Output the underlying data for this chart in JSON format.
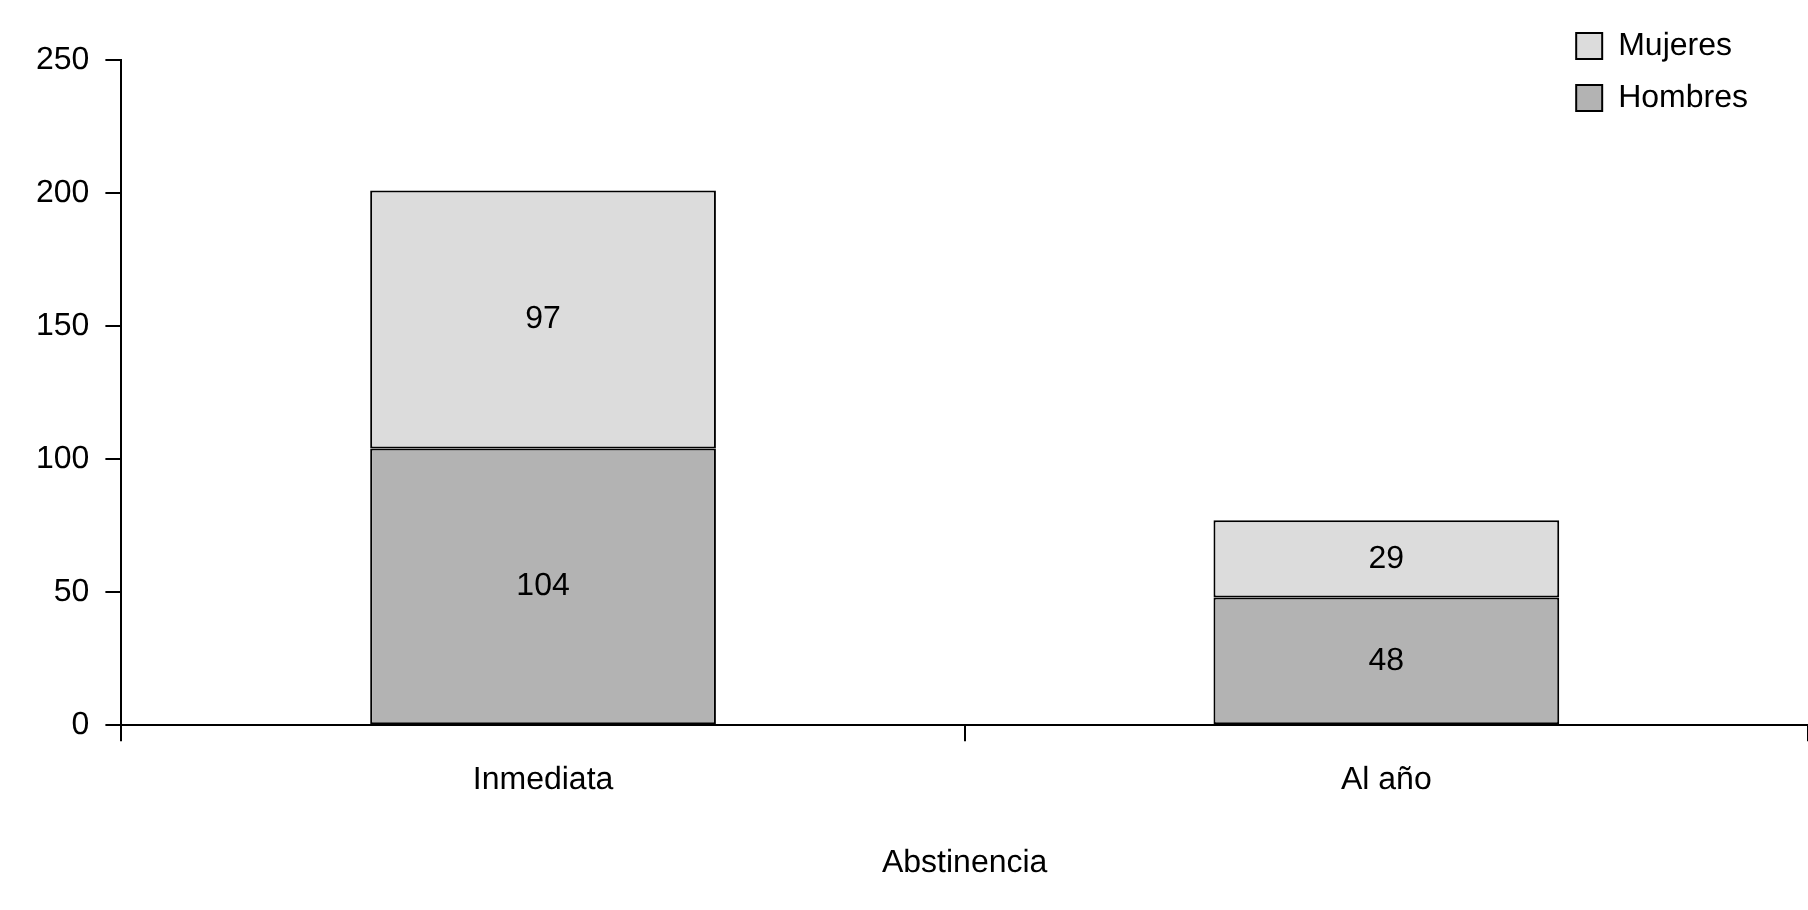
{
  "chart_data": {
    "type": "bar",
    "xlabel": "Abstinencia",
    "categories": [
      "Inmediata",
      "Al año"
    ],
    "stacked": true,
    "series": [
      {
        "name": "Hombres",
        "color": "#b3b3b3",
        "values": [
          104,
          48
        ]
      },
      {
        "name": "Mujeres",
        "color": "#dcdcdc",
        "values": [
          97,
          29
        ]
      }
    ],
    "ylim": [
      0,
      250
    ],
    "yticks": [
      0,
      50,
      100,
      150,
      200,
      250
    ],
    "grid": false,
    "legend": "top right",
    "data_labels": true
  }
}
